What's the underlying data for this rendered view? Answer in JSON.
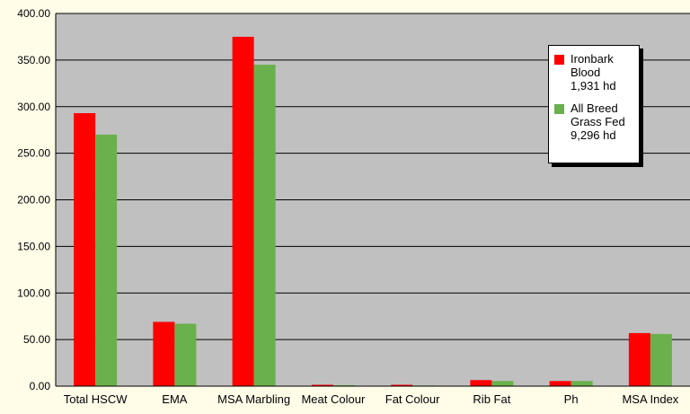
{
  "chart_data": {
    "type": "bar",
    "title": "",
    "xlabel": "",
    "ylabel": "",
    "categories": [
      "Total HSCW",
      "EMA",
      "MSA Marbling",
      "Meat Colour",
      "Fat Colour",
      "Rib Fat",
      "Ph",
      "MSA Index"
    ],
    "series": [
      {
        "name": "Ironbark Blood 1,931 hd",
        "name_lines": [
          "Ironbark",
          "Blood",
          "1,931 hd"
        ],
        "color": "#ff0000",
        "values": [
          293,
          69,
          375,
          1.5,
          1.5,
          6.5,
          5.5,
          57
        ]
      },
      {
        "name": "All Breed Grass Fed 9,296 hd",
        "name_lines": [
          "All Breed",
          "Grass Fed",
          "9,296 hd"
        ],
        "color": "#6ab04c",
        "values": [
          270,
          67,
          345,
          1.0,
          0.7,
          5.5,
          5.5,
          56
        ]
      }
    ],
    "ylim": [
      0,
      400
    ],
    "yticks": [
      "0.00",
      "50.00",
      "100.00",
      "150.00",
      "200.00",
      "250.00",
      "300.00",
      "350.00",
      "400.00"
    ],
    "grid": true,
    "legend_position": "top-right",
    "plot_background": "#c0c0c0"
  }
}
